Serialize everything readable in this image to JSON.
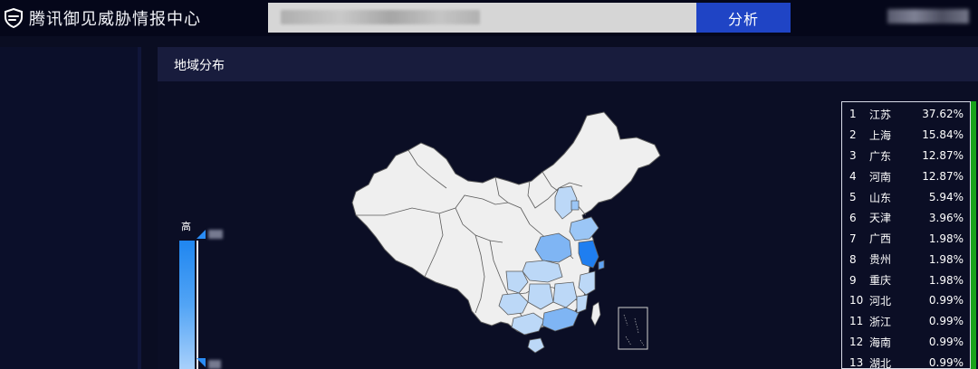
{
  "app": {
    "title": "腾讯御见威胁情报中心",
    "analyze_label": "分析",
    "brand_icon": "shield-icon"
  },
  "panel": {
    "title": "地域分布"
  },
  "legend": {
    "high_label": "高",
    "colors": {
      "high": "#1f86f0",
      "low": "#a8d0fb"
    }
  },
  "map": {
    "base_color": "#efefef",
    "border_color": "#5b5b5b",
    "highlight_colors": {
      "strong": "#1f7ef0",
      "medium": "#7fb5f4",
      "light": "#bcd8f7"
    }
  },
  "ranking": [
    {
      "rank": "1",
      "region": "江苏",
      "percent": "37.62%"
    },
    {
      "rank": "2",
      "region": "上海",
      "percent": "15.84%"
    },
    {
      "rank": "3",
      "region": "广东",
      "percent": "12.87%"
    },
    {
      "rank": "4",
      "region": "河南",
      "percent": "12.87%"
    },
    {
      "rank": "5",
      "region": "山东",
      "percent": "5.94%"
    },
    {
      "rank": "6",
      "region": "天津",
      "percent": "3.96%"
    },
    {
      "rank": "7",
      "region": "广西",
      "percent": "1.98%"
    },
    {
      "rank": "8",
      "region": "贵州",
      "percent": "1.98%"
    },
    {
      "rank": "9",
      "region": "重庆",
      "percent": "1.98%"
    },
    {
      "rank": "10",
      "region": "河北",
      "percent": "0.99%"
    },
    {
      "rank": "11",
      "region": "浙江",
      "percent": "0.99%"
    },
    {
      "rank": "12",
      "region": "海南",
      "percent": "0.99%"
    },
    {
      "rank": "13",
      "region": "湖北",
      "percent": "0.99%"
    }
  ],
  "colors": {
    "accent": "#1f44c5",
    "scrollbar": "#19a31b"
  }
}
